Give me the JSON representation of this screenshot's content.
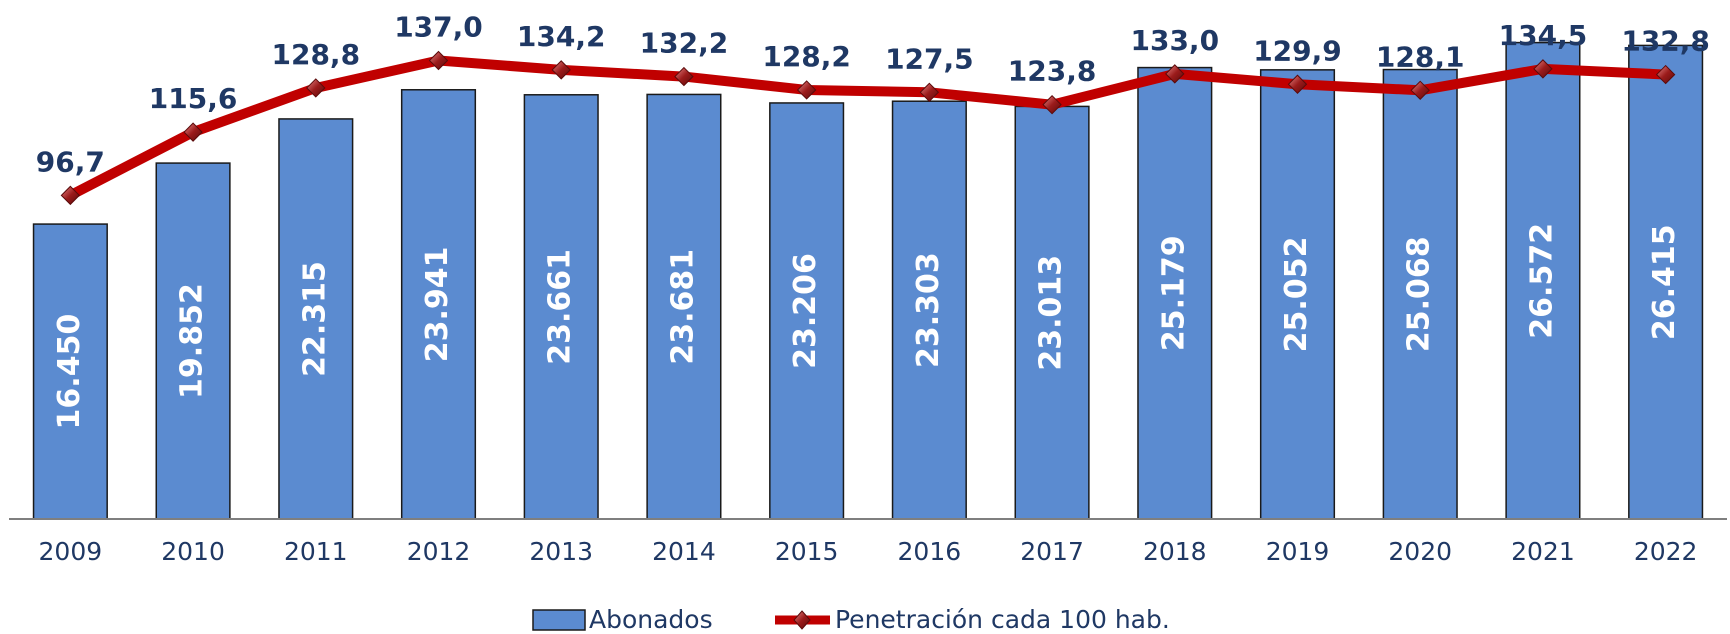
{
  "chart_data": {
    "type": "bar",
    "categories": [
      "2009",
      "2010",
      "2011",
      "2012",
      "2013",
      "2014",
      "2015",
      "2016",
      "2017",
      "2018",
      "2019",
      "2020",
      "2021",
      "2022"
    ],
    "series": [
      {
        "name": "Abonados",
        "color": "#5b8bd0",
        "values": [
          16450,
          19852,
          22315,
          23941,
          23661,
          23681,
          23206,
          23303,
          23013,
          25179,
          25052,
          25068,
          26572,
          26415
        ],
        "value_labels": [
          "16.450",
          "19.852",
          "22.315",
          "23.941",
          "23.661",
          "23.681",
          "23.206",
          "23.303",
          "23.013",
          "25.179",
          "25.052",
          "25.068",
          "26.572",
          "26.415"
        ]
      },
      {
        "name": "Penetración cada 100 hab.",
        "color": "#c00000",
        "type": "line",
        "axis": "y2",
        "values": [
          96.7,
          115.6,
          128.8,
          137.0,
          134.2,
          132.2,
          128.2,
          127.5,
          123.8,
          133.0,
          129.9,
          128.1,
          134.5,
          132.8
        ],
        "value_labels": [
          "96,7",
          "115,6",
          "128,8",
          "137,0",
          "134,2",
          "132,2",
          "128,2",
          "127,5",
          "123,8",
          "133,0",
          "129,9",
          "128,1",
          "134,5",
          "132,8"
        ]
      }
    ],
    "ylim": [
      0,
      28000
    ],
    "y2lim": [
      0,
      150
    ]
  }
}
